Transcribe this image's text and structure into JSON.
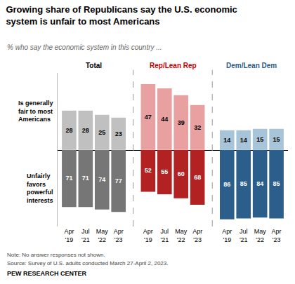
{
  "chart_data": [
    {
      "type": "bar",
      "title": "Growing share of Republicans say the U.S. economic\nsystem is unfair to most Americans",
      "subtitle": "% who say the economic system in this country ...",
      "ylabel": "Is generally\nfair to most\nAmericans",
      "categories": [
        "Apr\n'19",
        "Jul\n'21",
        "May\n'22",
        "Apr\n'23",
        "Apr\n'19",
        "Jul\n'21",
        "May\n'22",
        "Apr\n'23",
        "Apr\n'19",
        "Jul\n'21",
        "May\n'22",
        "Apr\n'23"
      ],
      "values": [
        28,
        28,
        25,
        23,
        47,
        44,
        39,
        32,
        14,
        14,
        15,
        15
      ],
      "colors": [
        "#c0c0c0",
        "#c0c0c0",
        "#c0c0c0",
        "#c0c0c0",
        "#e8a0a0",
        "#e8a0a0",
        "#e8a0a0",
        "#e8a0a0",
        "#a8c4d8",
        "#a8c4d8",
        "#a8c4d8",
        "#a8c4d8"
      ],
      "data_labels": true,
      "ylim": [
        0,
        55
      ],
      "tick_labels": false,
      "grid": false,
      "annotations": [
        {
          "text": "Total",
          "color": "#000000",
          "x": 0
        },
        {
          "text": "Rep/Lean Rep",
          "color": "#cc0000",
          "x": 4
        },
        {
          "text": "Dem/Lean Dem",
          "color": "#2b5e8a",
          "x": 8
        }
      ]
    },
    {
      "type": "bar",
      "ylabel": "Unfairly\nfavors\npowerful\ninterests",
      "categories": [
        "Apr\n'19",
        "Jul\n'21",
        "May\n'22",
        "Apr\n'23",
        "Apr\n'19",
        "Jul\n'21",
        "May\n'22",
        "Apr\n'23",
        "Apr\n'19",
        "Jul\n'21",
        "May\n'22",
        "Apr\n'23"
      ],
      "values": [
        71,
        71,
        74,
        77,
        52,
        55,
        60,
        68,
        86,
        85,
        84,
        85
      ],
      "colors": [
        "#767676",
        "#767676",
        "#767676",
        "#767676",
        "#b22222",
        "#b22222",
        "#b22222",
        "#b22222",
        "#2b5e8a",
        "#2b5e8a",
        "#2b5e8a",
        "#2b5e8a"
      ],
      "data_labels": true,
      "ylim": [
        95,
        0
      ],
      "tick_labels": "x",
      "grid": false,
      "annotations": [
        {
          "text": "Note: No answer responses not shown."
        },
        {
          "text": "Source: Survey of U.S. adults conducted March 27-April 2, 2023."
        },
        {
          "text": "PEW RESEARCH CENTER"
        }
      ]
    }
  ]
}
